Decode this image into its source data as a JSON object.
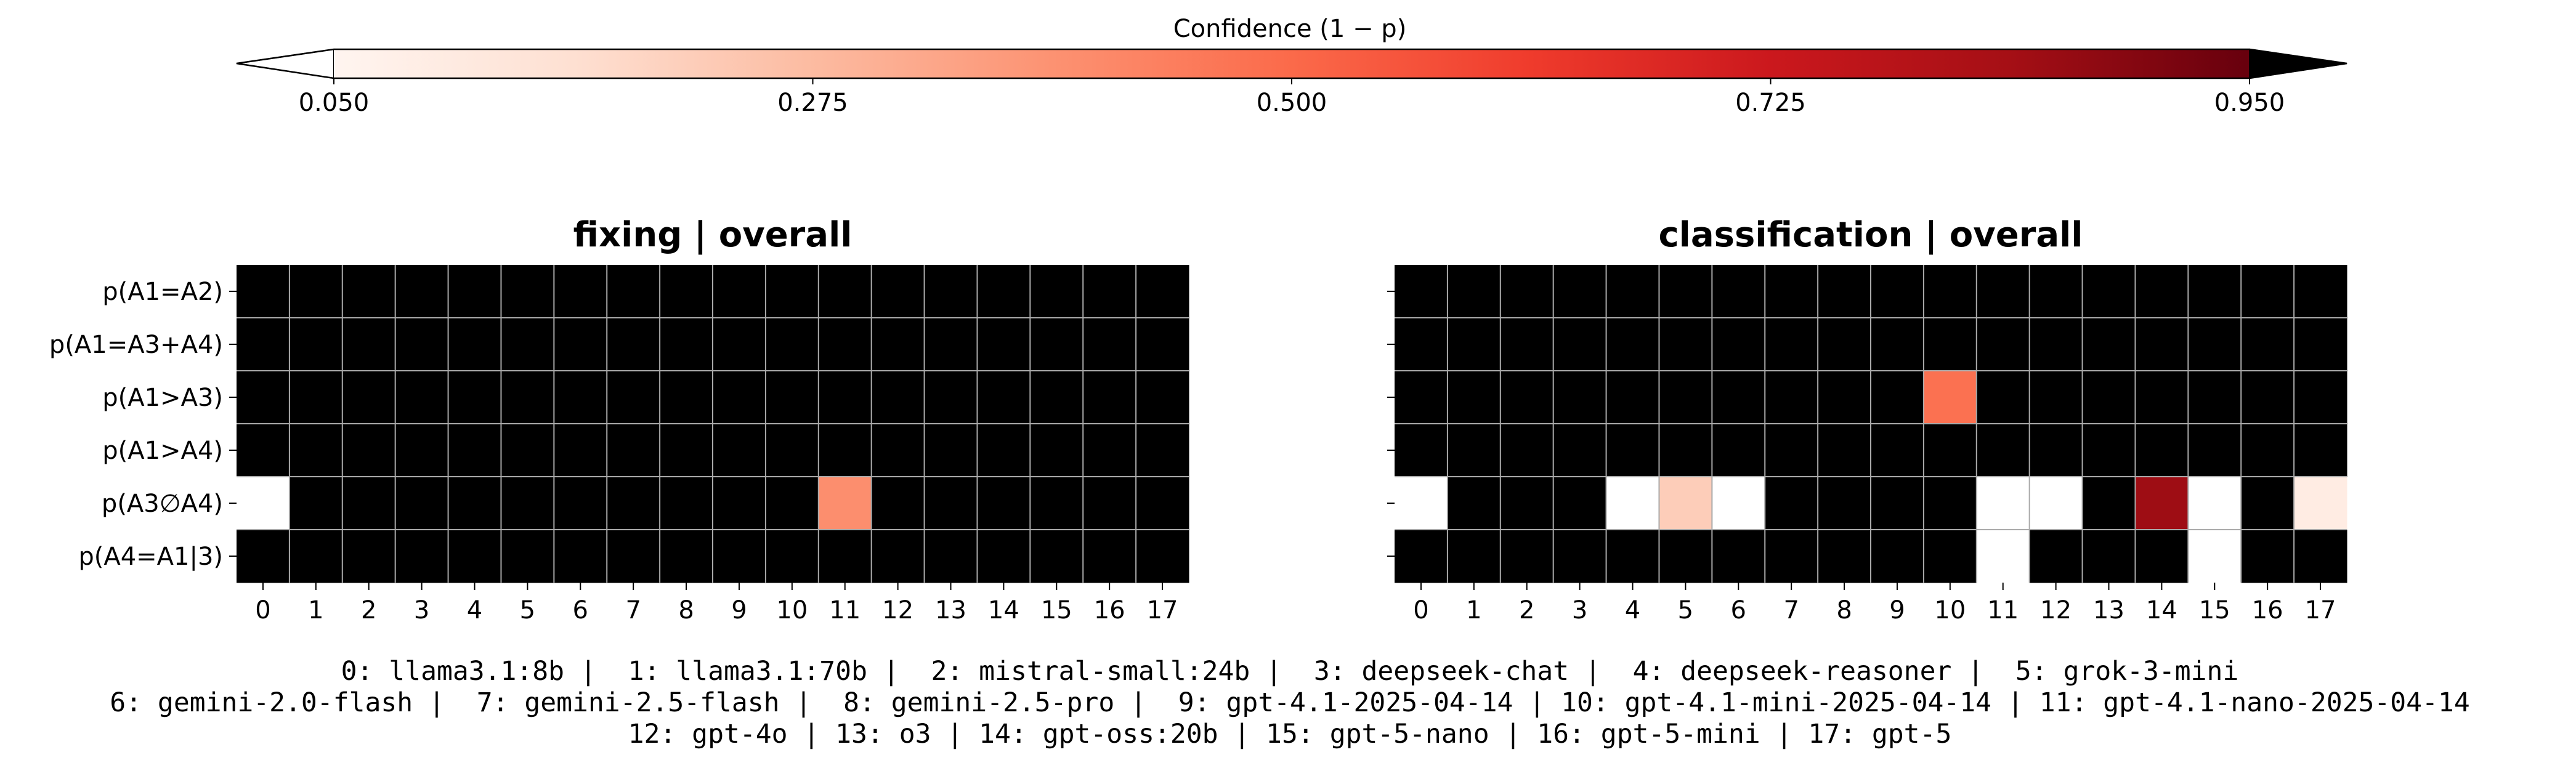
{
  "colors": {
    "cmap": [
      "#fff5f0",
      "#fee0d2",
      "#fcbba1",
      "#fc9272",
      "#fb6a4a",
      "#ef3b2c",
      "#cb181d",
      "#a50f15",
      "#67000d"
    ],
    "under": "#ffffff",
    "over": "#000000",
    "grid": "#aaaaaa"
  },
  "colorbar": {
    "label": "Confidence (1 − p)",
    "vmin": 0.05,
    "vmax": 0.95,
    "ticks": [
      "0.050",
      "0.275",
      "0.500",
      "0.725",
      "0.950"
    ],
    "tick_values": [
      0.05,
      0.275,
      0.5,
      0.725,
      0.95
    ],
    "extend": "both"
  },
  "chart_data": [
    {
      "type": "heatmap",
      "title": "fixing | overall",
      "rows": [
        "p(A1=A2)",
        "p(A1=A3+A4)",
        "p(A1>A3)",
        "p(A1>A4)",
        "p(A3∅A4)",
        "p(A4=A1|3)"
      ],
      "columns": [
        "0",
        "1",
        "2",
        "3",
        "4",
        "5",
        "6",
        "7",
        "8",
        "9",
        "10",
        "11",
        "12",
        "13",
        "14",
        "15",
        "16",
        "17"
      ],
      "values": [
        [
          1,
          1,
          1,
          1,
          1,
          1,
          1,
          1,
          1,
          1,
          1,
          1,
          1,
          1,
          1,
          1,
          1,
          1
        ],
        [
          1,
          1,
          1,
          1,
          1,
          1,
          1,
          1,
          1,
          1,
          1,
          1,
          1,
          1,
          1,
          1,
          1,
          1
        ],
        [
          1,
          1,
          1,
          1,
          1,
          1,
          1,
          1,
          1,
          1,
          1,
          1,
          1,
          1,
          1,
          1,
          1,
          1
        ],
        [
          1,
          1,
          1,
          1,
          1,
          1,
          1,
          1,
          1,
          1,
          1,
          1,
          1,
          1,
          1,
          1,
          1,
          1
        ],
        [
          0.03,
          1,
          1,
          1,
          1,
          1,
          1,
          1,
          1,
          1,
          1,
          0.4,
          1,
          1,
          1,
          1,
          1,
          1
        ],
        [
          1,
          1,
          1,
          1,
          1,
          1,
          1,
          1,
          1,
          1,
          1,
          1,
          1,
          1,
          1,
          1,
          1,
          1
        ]
      ]
    },
    {
      "type": "heatmap",
      "title": "classification | overall",
      "rows": [
        "p(A1=A2)",
        "p(A1=A3+A4)",
        "p(A1>A3)",
        "p(A1>A4)",
        "p(A3∅A4)",
        "p(A4=A1|3)"
      ],
      "columns": [
        "0",
        "1",
        "2",
        "3",
        "4",
        "5",
        "6",
        "7",
        "8",
        "9",
        "10",
        "11",
        "12",
        "13",
        "14",
        "15",
        "16",
        "17"
      ],
      "values": [
        [
          1,
          1,
          1,
          1,
          1,
          1,
          1,
          1,
          1,
          1,
          1,
          1,
          1,
          1,
          1,
          1,
          1,
          1
        ],
        [
          1,
          1,
          1,
          1,
          1,
          1,
          1,
          1,
          1,
          1,
          1,
          1,
          1,
          1,
          1,
          1,
          1,
          1
        ],
        [
          1,
          1,
          1,
          1,
          1,
          1,
          1,
          1,
          1,
          1,
          0.48,
          1,
          1,
          1,
          1,
          1,
          1,
          1
        ],
        [
          1,
          1,
          1,
          1,
          1,
          1,
          1,
          1,
          1,
          1,
          1,
          1,
          1,
          1,
          1,
          1,
          1,
          1
        ],
        [
          0.03,
          1,
          1,
          1,
          0.03,
          0.22,
          0.03,
          1,
          1,
          1,
          1,
          0.03,
          0.03,
          1,
          0.85,
          0.03,
          1,
          0.1
        ],
        [
          1,
          1,
          1,
          1,
          1,
          1,
          1,
          1,
          1,
          1,
          1,
          0.03,
          1,
          1,
          1,
          0.03,
          1,
          1
        ]
      ]
    }
  ],
  "legend_lines": [
    "0: llama3.1:8b |  1: llama3.1:70b |  2: mistral-small:24b |  3: deepseek-chat |  4: deepseek-reasoner |  5: grok-3-mini",
    "6: gemini-2.0-flash |  7: gemini-2.5-flash |  8: gemini-2.5-pro |  9: gpt-4.1-2025-04-14 | 10: gpt-4.1-mini-2025-04-14 | 11: gpt-4.1-nano-2025-04-14",
    "12: gpt-4o | 13: o3 | 14: gpt-oss:20b | 15: gpt-5-nano | 16: gpt-5-mini | 17: gpt-5"
  ]
}
